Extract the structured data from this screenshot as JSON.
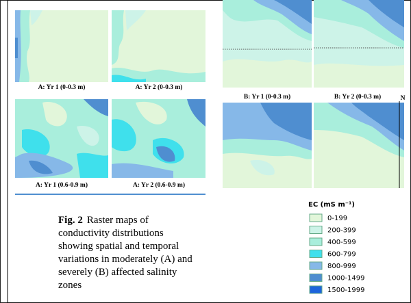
{
  "panels": [
    {
      "label": "A: Yr 1 (0-0.3 m)"
    },
    {
      "label": "A: Yr 2 (0-0.3 m)"
    },
    {
      "label": "A: Yr 1 (0.6-0.9 m)"
    },
    {
      "label": "A: Yr 2 (0.6-0.9 m)"
    },
    {
      "label": "B: Yr 1 (0-0.3 m)"
    },
    {
      "label": "B: Yr 2 (0-0.3 m)"
    }
  ],
  "compass": "N",
  "caption": {
    "figure_label": "Fig. 2",
    "lines": [
      "Raster maps of",
      "conductivity distributions",
      "showing spatial and temporal",
      "variations in moderately (A) and",
      "severely (B) affected salinity",
      "zones"
    ]
  },
  "legend": {
    "title": "EC (mS m⁻¹)",
    "items": [
      {
        "label": "0-199",
        "color": "#e2f6da"
      },
      {
        "label": "200-399",
        "color": "#cdf3e8"
      },
      {
        "label": "400-599",
        "color": "#a9eedc"
      },
      {
        "label": "600-799",
        "color": "#3fe0ec"
      },
      {
        "label": "800-999",
        "color": "#86b8e8"
      },
      {
        "label": "1000-1499",
        "color": "#4f8ed0"
      },
      {
        "label": "1500-1999",
        "color": "#1c64dc"
      }
    ]
  }
}
